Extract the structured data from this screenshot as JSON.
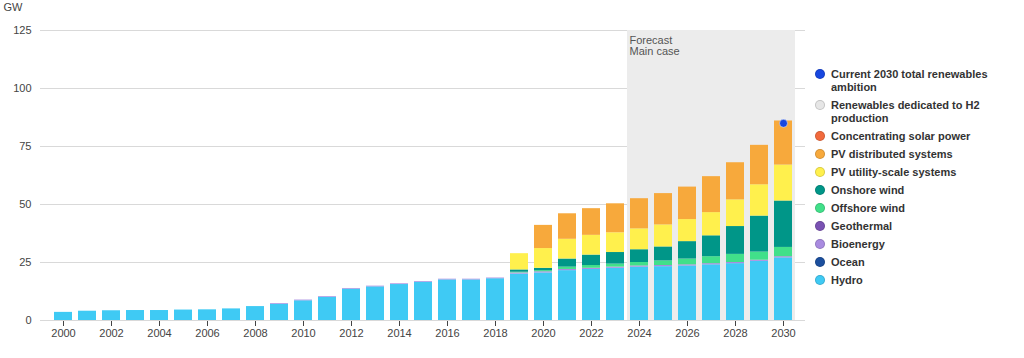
{
  "chart_data": {
    "type": "bar",
    "stacked": true,
    "grid": true,
    "legend": "right",
    "y_label": "GW",
    "x": [
      2000,
      2001,
      2002,
      2003,
      2004,
      2005,
      2006,
      2007,
      2008,
      2009,
      2010,
      2011,
      2012,
      2013,
      2014,
      2015,
      2016,
      2017,
      2018,
      2019,
      2020,
      2021,
      2022,
      2023,
      2024,
      2025,
      2026,
      2027,
      2028,
      2029,
      2030
    ],
    "xticks": [
      2000,
      2002,
      2004,
      2006,
      2008,
      2010,
      2012,
      2014,
      2016,
      2018,
      2020,
      2022,
      2024,
      2026,
      2028,
      2030
    ],
    "ylim": [
      0,
      125
    ],
    "yticks": [
      0,
      25,
      50,
      75,
      100,
      125
    ],
    "forecast": {
      "labels": [
        "Forecast",
        "Main case"
      ],
      "from": 2024
    },
    "markers": [
      {
        "name": "Current 2030 total renewables ambition",
        "x": 2030,
        "y": 85,
        "color": "#1747e0"
      }
    ],
    "series": [
      {
        "name": "Hydro",
        "color": "#3fcaf4",
        "values": [
          3.5,
          4,
          4.2,
          4.3,
          4.3,
          4.5,
          4.6,
          5,
          6,
          7,
          8.5,
          10,
          13.5,
          14.5,
          15.5,
          16.5,
          17.5,
          17.5,
          18,
          20,
          20.5,
          21.5,
          22,
          22.5,
          23,
          23.2,
          23.5,
          24,
          24.5,
          25.5,
          27
        ]
      },
      {
        "name": "Ocean",
        "color": "#1b4f9e",
        "values": [
          0,
          0,
          0,
          0,
          0,
          0,
          0,
          0,
          0,
          0,
          0,
          0,
          0,
          0,
          0,
          0,
          0,
          0,
          0,
          0,
          0,
          0,
          0,
          0,
          0,
          0,
          0,
          0,
          0,
          0,
          0
        ]
      },
      {
        "name": "Bioenergy",
        "color": "#a98be0",
        "values": [
          0,
          0,
          0,
          0,
          0,
          0,
          0,
          0,
          0,
          0.3,
          0.3,
          0.3,
          0.3,
          0.3,
          0.3,
          0.3,
          0.3,
          0.3,
          0.3,
          0.5,
          0.5,
          0.5,
          0.5,
          0.5,
          0.5,
          0.5,
          0.5,
          0.5,
          0.5,
          0.5,
          0.5
        ]
      },
      {
        "name": "Geothermal",
        "color": "#7a52b3",
        "values": [
          0,
          0,
          0,
          0,
          0,
          0,
          0,
          0,
          0,
          0,
          0,
          0,
          0,
          0,
          0,
          0,
          0,
          0,
          0,
          0,
          0,
          0,
          0,
          0,
          0,
          0,
          0,
          0,
          0,
          0,
          0
        ]
      },
      {
        "name": "Offshore wind",
        "color": "#41e08a",
        "values": [
          0,
          0,
          0,
          0,
          0,
          0,
          0,
          0,
          0,
          0,
          0,
          0,
          0,
          0,
          0,
          0,
          0,
          0,
          0,
          0.3,
          0.5,
          1,
          1.2,
          1.3,
          1.5,
          2,
          2.5,
          3,
          3.5,
          3.5,
          4
        ]
      },
      {
        "name": "Onshore wind",
        "color": "#009688",
        "values": [
          0,
          0,
          0,
          0,
          0,
          0,
          0,
          0,
          0,
          0,
          0,
          0,
          0,
          0,
          0,
          0,
          0,
          0,
          0,
          1,
          1,
          3.5,
          4.5,
          5,
          5.5,
          6,
          7.5,
          9,
          12,
          15.5,
          20
        ]
      },
      {
        "name": "PV utility-scale systems",
        "color": "#fff04d",
        "values": [
          0,
          0,
          0,
          0,
          0,
          0,
          0,
          0,
          0,
          0,
          0,
          0,
          0,
          0,
          0,
          0,
          0,
          0,
          0,
          7,
          8.5,
          8.5,
          8.5,
          8.5,
          9,
          9.5,
          9.5,
          10,
          11.5,
          13.5,
          15.5
        ]
      },
      {
        "name": "PV distributed systems",
        "color": "#f7a93c",
        "values": [
          0,
          0,
          0,
          0,
          0,
          0,
          0,
          0,
          0,
          0,
          0,
          0,
          0,
          0,
          0,
          0,
          0,
          0,
          0,
          0,
          10,
          11,
          11.5,
          12.5,
          13,
          13.5,
          14,
          15.5,
          16,
          17,
          19
        ]
      },
      {
        "name": "Concentrating solar power",
        "color": "#f26a3d",
        "values": [
          0,
          0,
          0,
          0,
          0,
          0,
          0,
          0,
          0,
          0,
          0,
          0,
          0,
          0,
          0,
          0,
          0,
          0,
          0,
          0,
          0,
          0,
          0,
          0,
          0,
          0,
          0,
          0,
          0,
          0,
          0
        ]
      },
      {
        "name": "Renewables dedicated to H2 production",
        "color": "#e6e6e6",
        "values": [
          0,
          0,
          0,
          0,
          0,
          0,
          0,
          0,
          0,
          0,
          0,
          0,
          0,
          0,
          0,
          0,
          0,
          0,
          0,
          0,
          0,
          0,
          0,
          0,
          0,
          0,
          0,
          0,
          0,
          0,
          0
        ]
      }
    ]
  }
}
